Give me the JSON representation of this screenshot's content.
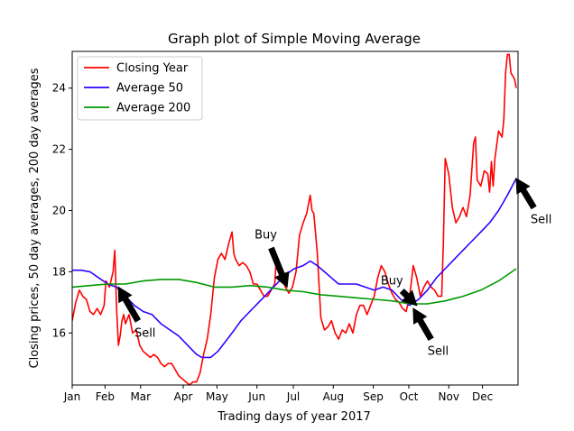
{
  "chart_data": {
    "type": "line",
    "title": "Graph plot of Simple Moving Average",
    "xlabel": "Trading days of year 2017",
    "ylabel": "Closing prices, 50 day averages, 200 day averages",
    "xlim": [
      0,
      251
    ],
    "ylim": [
      14.3,
      25.2
    ],
    "x_ticks": [
      {
        "label": "Jan",
        "value": 0
      },
      {
        "label": "Feb",
        "value": 18.5
      },
      {
        "label": "Mar",
        "value": 38.5
      },
      {
        "label": "Apr",
        "value": 62.5
      },
      {
        "label": "May",
        "value": 81.5
      },
      {
        "label": "Jun",
        "value": 104
      },
      {
        "label": "Jul",
        "value": 124.5
      },
      {
        "label": "Aug",
        "value": 147
      },
      {
        "label": "Sep",
        "value": 169.5
      },
      {
        "label": "Oct",
        "value": 189.5
      },
      {
        "label": "Nov",
        "value": 212
      },
      {
        "label": "Dec",
        "value": 231
      }
    ],
    "y_ticks": [
      16,
      18,
      20,
      22,
      24
    ],
    "grid": false,
    "legend": "top-left",
    "series": [
      {
        "name": "Closing Year",
        "color": "#ff0000",
        "points": [
          [
            0,
            16.4
          ],
          [
            2,
            17.0
          ],
          [
            4,
            17.4
          ],
          [
            6,
            17.2
          ],
          [
            8,
            17.1
          ],
          [
            10,
            16.7
          ],
          [
            12,
            16.6
          ],
          [
            14,
            16.8
          ],
          [
            16,
            16.6
          ],
          [
            18,
            16.9
          ],
          [
            19,
            17.7
          ],
          [
            21,
            17.5
          ],
          [
            23,
            18.0
          ],
          [
            24,
            18.7
          ],
          [
            25,
            16.8
          ],
          [
            26,
            15.6
          ],
          [
            27,
            15.9
          ],
          [
            28,
            16.4
          ],
          [
            29,
            16.6
          ],
          [
            30,
            16.3
          ],
          [
            32,
            16.6
          ],
          [
            34,
            16.0
          ],
          [
            36,
            16.1
          ],
          [
            38,
            15.6
          ],
          [
            40,
            15.4
          ],
          [
            42,
            15.3
          ],
          [
            44,
            15.2
          ],
          [
            46,
            15.3
          ],
          [
            48,
            15.2
          ],
          [
            50,
            15.0
          ],
          [
            52,
            14.9
          ],
          [
            54,
            15.0
          ],
          [
            56,
            15.0
          ],
          [
            58,
            14.8
          ],
          [
            60,
            14.6
          ],
          [
            62,
            14.5
          ],
          [
            64,
            14.4
          ],
          [
            66,
            14.3
          ],
          [
            68,
            14.4
          ],
          [
            70,
            14.4
          ],
          [
            72,
            14.7
          ],
          [
            74,
            15.3
          ],
          [
            76,
            15.8
          ],
          [
            78,
            16.6
          ],
          [
            79,
            17.2
          ],
          [
            80,
            17.8
          ],
          [
            82,
            18.4
          ],
          [
            84,
            18.6
          ],
          [
            86,
            18.4
          ],
          [
            88,
            18.9
          ],
          [
            90,
            19.3
          ],
          [
            91,
            18.6
          ],
          [
            92,
            18.4
          ],
          [
            94,
            18.2
          ],
          [
            96,
            18.3
          ],
          [
            98,
            18.2
          ],
          [
            100,
            18.0
          ],
          [
            102,
            17.6
          ],
          [
            104,
            17.6
          ],
          [
            106,
            17.4
          ],
          [
            108,
            17.2
          ],
          [
            110,
            17.2
          ],
          [
            112,
            17.4
          ],
          [
            114,
            17.6
          ],
          [
            115,
            18.5
          ],
          [
            116,
            18.4
          ],
          [
            118,
            17.9
          ],
          [
            120,
            17.5
          ],
          [
            122,
            17.3
          ],
          [
            124,
            17.5
          ],
          [
            126,
            18.0
          ],
          [
            128,
            19.2
          ],
          [
            130,
            19.6
          ],
          [
            132,
            19.9
          ],
          [
            134,
            20.5
          ],
          [
            135,
            20.0
          ],
          [
            136,
            19.9
          ],
          [
            138,
            18.6
          ],
          [
            140,
            16.5
          ],
          [
            142,
            16.1
          ],
          [
            144,
            16.2
          ],
          [
            146,
            16.4
          ],
          [
            148,
            16.0
          ],
          [
            150,
            15.8
          ],
          [
            152,
            16.1
          ],
          [
            154,
            16.0
          ],
          [
            156,
            16.3
          ],
          [
            158,
            16.0
          ],
          [
            160,
            16.6
          ],
          [
            162,
            16.9
          ],
          [
            164,
            16.9
          ],
          [
            166,
            16.6
          ],
          [
            168,
            16.9
          ],
          [
            170,
            17.2
          ],
          [
            172,
            17.8
          ],
          [
            174,
            18.2
          ],
          [
            176,
            18.0
          ],
          [
            178,
            17.6
          ],
          [
            180,
            17.3
          ],
          [
            182,
            17.1
          ],
          [
            184,
            17.0
          ],
          [
            186,
            16.8
          ],
          [
            188,
            16.7
          ],
          [
            190,
            17.2
          ],
          [
            192,
            18.2
          ],
          [
            194,
            17.8
          ],
          [
            196,
            17.2
          ],
          [
            198,
            17.5
          ],
          [
            200,
            17.7
          ],
          [
            202,
            17.5
          ],
          [
            204,
            17.4
          ],
          [
            206,
            17.2
          ],
          [
            208,
            17.2
          ],
          [
            209,
            19.0
          ],
          [
            210,
            21.7
          ],
          [
            212,
            21.2
          ],
          [
            214,
            20.1
          ],
          [
            216,
            19.6
          ],
          [
            218,
            19.8
          ],
          [
            220,
            20.1
          ],
          [
            222,
            19.8
          ],
          [
            224,
            20.5
          ],
          [
            226,
            22.2
          ],
          [
            227,
            22.4
          ],
          [
            228,
            21.0
          ],
          [
            230,
            20.8
          ],
          [
            232,
            21.3
          ],
          [
            234,
            21.2
          ],
          [
            235,
            20.6
          ],
          [
            236,
            21.6
          ],
          [
            237,
            20.8
          ],
          [
            238,
            21.7
          ],
          [
            240,
            22.6
          ],
          [
            242,
            22.4
          ],
          [
            243,
            23.0
          ],
          [
            244,
            24.5
          ],
          [
            245,
            25.1
          ],
          [
            246,
            25.1
          ],
          [
            247,
            24.5
          ],
          [
            248,
            24.4
          ],
          [
            249,
            24.3
          ],
          [
            250,
            24.0
          ]
        ]
      },
      {
        "name": "Average 50",
        "color": "#3300ff",
        "points": [
          [
            0,
            18.05
          ],
          [
            5,
            18.05
          ],
          [
            10,
            18.0
          ],
          [
            15,
            17.8
          ],
          [
            20,
            17.6
          ],
          [
            25,
            17.5
          ],
          [
            30,
            17.2
          ],
          [
            35,
            16.9
          ],
          [
            40,
            16.7
          ],
          [
            45,
            16.6
          ],
          [
            50,
            16.3
          ],
          [
            55,
            16.1
          ],
          [
            60,
            15.9
          ],
          [
            65,
            15.6
          ],
          [
            70,
            15.3
          ],
          [
            73,
            15.2
          ],
          [
            78,
            15.2
          ],
          [
            82,
            15.4
          ],
          [
            86,
            15.7
          ],
          [
            90,
            16.0
          ],
          [
            95,
            16.4
          ],
          [
            100,
            16.7
          ],
          [
            105,
            17.0
          ],
          [
            110,
            17.3
          ],
          [
            115,
            17.6
          ],
          [
            120,
            17.9
          ],
          [
            125,
            18.1
          ],
          [
            130,
            18.2
          ],
          [
            134,
            18.35
          ],
          [
            138,
            18.2
          ],
          [
            142,
            18.0
          ],
          [
            146,
            17.8
          ],
          [
            150,
            17.6
          ],
          [
            155,
            17.6
          ],
          [
            160,
            17.6
          ],
          [
            165,
            17.5
          ],
          [
            170,
            17.4
          ],
          [
            175,
            17.5
          ],
          [
            180,
            17.4
          ],
          [
            185,
            17.1
          ],
          [
            190,
            16.9
          ],
          [
            195,
            17.1
          ],
          [
            200,
            17.4
          ],
          [
            205,
            17.8
          ],
          [
            210,
            18.1
          ],
          [
            215,
            18.4
          ],
          [
            220,
            18.7
          ],
          [
            225,
            19.0
          ],
          [
            230,
            19.3
          ],
          [
            235,
            19.6
          ],
          [
            240,
            20.0
          ],
          [
            245,
            20.5
          ],
          [
            250,
            21.05
          ]
        ]
      },
      {
        "name": "Average 200",
        "color": "#009900",
        "points": [
          [
            0,
            17.5
          ],
          [
            10,
            17.55
          ],
          [
            20,
            17.6
          ],
          [
            30,
            17.6
          ],
          [
            40,
            17.7
          ],
          [
            50,
            17.75
          ],
          [
            60,
            17.75
          ],
          [
            70,
            17.65
          ],
          [
            80,
            17.5
          ],
          [
            90,
            17.5
          ],
          [
            100,
            17.55
          ],
          [
            110,
            17.5
          ],
          [
            120,
            17.4
          ],
          [
            130,
            17.35
          ],
          [
            140,
            17.25
          ],
          [
            150,
            17.2
          ],
          [
            160,
            17.15
          ],
          [
            170,
            17.1
          ],
          [
            180,
            17.05
          ],
          [
            190,
            16.95
          ],
          [
            200,
            16.95
          ],
          [
            210,
            17.05
          ],
          [
            220,
            17.2
          ],
          [
            230,
            17.4
          ],
          [
            240,
            17.7
          ],
          [
            250,
            18.1
          ]
        ]
      }
    ],
    "annotations": [
      {
        "text": "Sell",
        "point": [
          26,
          17.5
        ],
        "text_pos": [
          41,
          16.0
        ]
      },
      {
        "text": "Buy",
        "point": [
          121,
          17.5
        ],
        "text_pos": [
          109,
          19.2
        ]
      },
      {
        "text": "Buy",
        "point": [
          194,
          16.9
        ],
        "text_pos": [
          180,
          17.7
        ]
      },
      {
        "text": "Sell",
        "point": [
          192,
          16.8
        ],
        "text_pos": [
          206,
          15.4
        ]
      },
      {
        "text": "Sell",
        "point": [
          250,
          21.05
        ],
        "text_pos": [
          264,
          19.7
        ]
      }
    ]
  }
}
